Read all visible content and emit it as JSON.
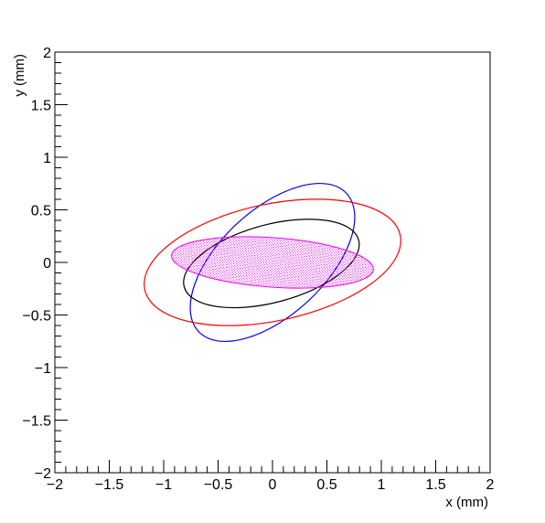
{
  "chart_data": {
    "type": "scatter",
    "title": "",
    "xlabel": "x (mm)",
    "ylabel": "y (mm)",
    "xlim": [
      -2,
      2
    ],
    "ylim": [
      -2,
      2
    ],
    "x_ticks": [
      {
        "value": -2,
        "label": "−2"
      },
      {
        "value": -1.5,
        "label": "−1.5"
      },
      {
        "value": -1,
        "label": "−1"
      },
      {
        "value": -0.5,
        "label": "−0.5"
      },
      {
        "value": 0,
        "label": "0"
      },
      {
        "value": 0.5,
        "label": "0.5"
      },
      {
        "value": 1,
        "label": "1"
      },
      {
        "value": 1.5,
        "label": "1.5"
      },
      {
        "value": 2,
        "label": "2"
      }
    ],
    "y_ticks": [
      {
        "value": -2,
        "label": "−2"
      },
      {
        "value": -1.5,
        "label": "−1.5"
      },
      {
        "value": -1,
        "label": "−1"
      },
      {
        "value": -0.5,
        "label": "−0.5"
      },
      {
        "value": 0,
        "label": "0"
      },
      {
        "value": 0.5,
        "label": "0.5"
      },
      {
        "value": 1,
        "label": "1"
      },
      {
        "value": 1.5,
        "label": "1.5"
      },
      {
        "value": 2,
        "label": "2"
      }
    ],
    "grid": false,
    "series": [
      {
        "kind": "ellipse",
        "color": "#0000ff",
        "fill": false,
        "center": [
          -0.0,
          -0.0
        ],
        "semi_major": 0.93,
        "semi_minor": 0.5,
        "angle_deg": 43
      },
      {
        "kind": "ellipse",
        "color": "#ff0000",
        "fill": false,
        "center": [
          0.0,
          0.0
        ],
        "semi_major": 1.2,
        "semi_minor": 0.555,
        "angle_deg": 12
      },
      {
        "kind": "ellipse",
        "color": "#000000",
        "fill": false,
        "center": [
          -0.01,
          -0.01
        ],
        "semi_major": 0.83,
        "semi_minor": 0.37,
        "angle_deg": 15
      },
      {
        "kind": "ellipse",
        "color": "#ee00ee",
        "fill": true,
        "fill_pattern": "dots",
        "center": [
          0.0,
          0.0
        ],
        "semi_major": 0.93,
        "semi_minor": 0.235,
        "angle_deg": -4
      }
    ]
  }
}
